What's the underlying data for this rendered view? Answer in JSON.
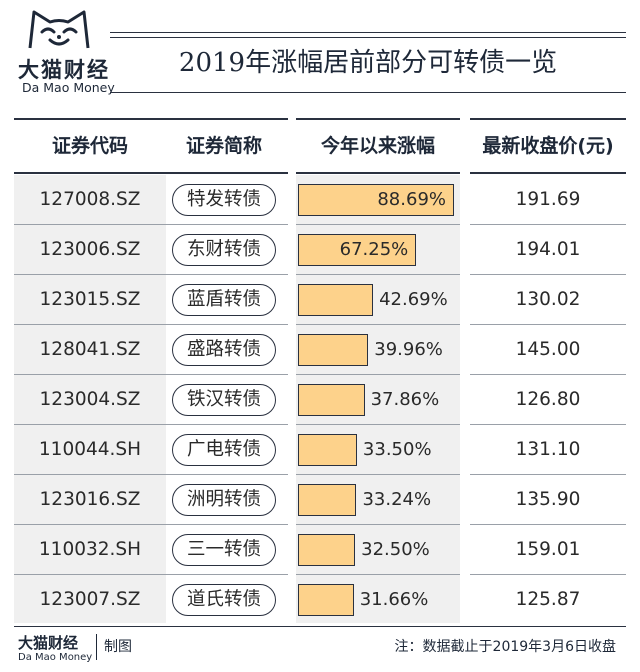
{
  "brand": {
    "name_cn": "大猫财经",
    "name_en": "Da Mao Money",
    "logo_icon": "cat-face-icon"
  },
  "title": "2019年涨幅居前部分可转债一览",
  "columns": {
    "code": "证券代码",
    "name": "证券简称",
    "change": "今年以来涨幅",
    "price": "最新收盘价(元)"
  },
  "chart_data": {
    "type": "table",
    "columns": [
      "证券代码",
      "证券简称",
      "今年以来涨幅",
      "最新收盘价(元)"
    ],
    "rows": [
      {
        "code": "127008.SZ",
        "name": "特发转债",
        "change": 88.69,
        "change_label": "88.69%",
        "price": "191.69"
      },
      {
        "code": "123006.SZ",
        "name": "东财转债",
        "change": 67.25,
        "change_label": "67.25%",
        "price": "194.01"
      },
      {
        "code": "123015.SZ",
        "name": "蓝盾转债",
        "change": 42.69,
        "change_label": "42.69%",
        "price": "130.02"
      },
      {
        "code": "128041.SZ",
        "name": "盛路转债",
        "change": 39.96,
        "change_label": "39.96%",
        "price": "145.00"
      },
      {
        "code": "123004.SZ",
        "name": "铁汉转债",
        "change": 37.86,
        "change_label": "37.86%",
        "price": "126.80"
      },
      {
        "code": "110044.SH",
        "name": "广电转债",
        "change": 33.5,
        "change_label": "33.50%",
        "price": "131.10"
      },
      {
        "code": "123016.SZ",
        "name": "洲明转债",
        "change": 33.24,
        "change_label": "33.24%",
        "price": "135.90"
      },
      {
        "code": "110032.SH",
        "name": "三一转债",
        "change": 32.5,
        "change_label": "32.50%",
        "price": "159.01"
      },
      {
        "code": "123007.SZ",
        "name": "道氏转债",
        "change": 31.66,
        "change_label": "31.66%",
        "price": "125.87"
      }
    ],
    "bar_color": "#fdd28b"
  },
  "footer": {
    "brand_cn": "大猫财经",
    "brand_en": "Da Mao Money",
    "credit": "制图",
    "note": "注：数据截止于2019年3月6日收盘"
  }
}
